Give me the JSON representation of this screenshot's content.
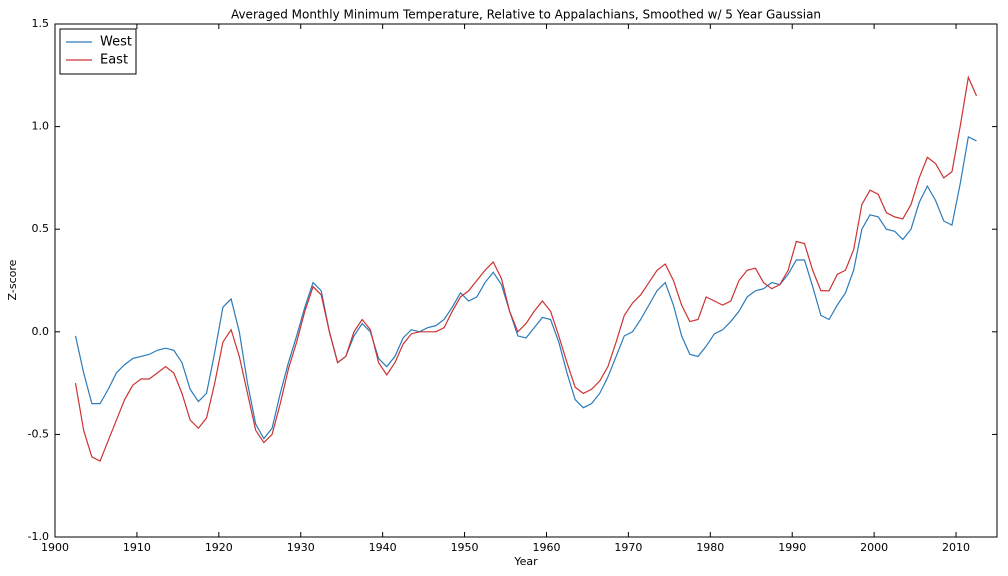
{
  "chart_data": {
    "type": "line",
    "title": "Averaged Monthly Minimum Temperature, Relative to Appalachians, Smoothed w/ 5 Year Gaussian",
    "xlabel": "Year",
    "ylabel": "Z-score",
    "x": [
      1902.5,
      1903.5,
      1904.5,
      1905.5,
      1906.5,
      1907.5,
      1908.5,
      1909.5,
      1910.5,
      1911.5,
      1912.5,
      1913.5,
      1914.5,
      1915.5,
      1916.5,
      1917.5,
      1918.5,
      1919.5,
      1920.5,
      1921.5,
      1922.5,
      1923.5,
      1924.5,
      1925.5,
      1926.5,
      1927.5,
      1928.5,
      1929.5,
      1930.5,
      1931.5,
      1932.5,
      1933.5,
      1934.5,
      1935.5,
      1936.5,
      1937.5,
      1938.5,
      1939.5,
      1940.5,
      1941.5,
      1942.5,
      1943.5,
      1944.5,
      1945.5,
      1946.5,
      1947.5,
      1948.5,
      1949.5,
      1950.5,
      1951.5,
      1952.5,
      1953.5,
      1954.5,
      1955.5,
      1956.5,
      1957.5,
      1958.5,
      1959.5,
      1960.5,
      1961.5,
      1962.5,
      1963.5,
      1964.5,
      1965.5,
      1966.5,
      1967.5,
      1968.5,
      1969.5,
      1970.5,
      1971.5,
      1972.5,
      1973.5,
      1974.5,
      1975.5,
      1976.5,
      1977.5,
      1978.5,
      1979.5,
      1980.5,
      1981.5,
      1982.5,
      1983.5,
      1984.5,
      1985.5,
      1986.5,
      1987.5,
      1988.5,
      1989.5,
      1990.5,
      1991.5,
      1992.5,
      1993.5,
      1994.5,
      1995.5,
      1996.5,
      1997.5,
      1998.5,
      1999.5,
      2000.5,
      2001.5,
      2002.5,
      2003.5,
      2004.5,
      2005.5,
      2006.5,
      2007.5,
      2008.5,
      2009.5,
      2010.5,
      2011.5,
      2012.5
    ],
    "series": [
      {
        "name": "West",
        "color": "#2b7bba",
        "values": [
          -0.02,
          -0.2,
          -0.35,
          -0.35,
          -0.28,
          -0.2,
          -0.16,
          -0.13,
          -0.12,
          -0.11,
          -0.09,
          -0.08,
          -0.09,
          -0.15,
          -0.28,
          -0.34,
          -0.3,
          -0.1,
          0.12,
          0.16,
          0.0,
          -0.25,
          -0.45,
          -0.52,
          -0.47,
          -0.3,
          -0.15,
          -0.02,
          0.12,
          0.24,
          0.2,
          0.0,
          -0.15,
          -0.12,
          -0.02,
          0.04,
          0.0,
          -0.13,
          -0.17,
          -0.12,
          -0.03,
          0.01,
          0.0,
          0.02,
          0.03,
          0.06,
          0.12,
          0.19,
          0.15,
          0.17,
          0.24,
          0.29,
          0.23,
          0.1,
          -0.02,
          -0.03,
          0.02,
          0.07,
          0.06,
          -0.05,
          -0.2,
          -0.33,
          -0.37,
          -0.35,
          -0.3,
          -0.22,
          -0.12,
          -0.02,
          0.0,
          0.06,
          0.13,
          0.2,
          0.24,
          0.13,
          -0.02,
          -0.11,
          -0.12,
          -0.07,
          -0.01,
          0.01,
          0.05,
          0.1,
          0.17,
          0.2,
          0.21,
          0.24,
          0.23,
          0.28,
          0.35,
          0.35,
          0.22,
          0.08,
          0.06,
          0.13,
          0.19,
          0.3,
          0.5,
          0.57,
          0.56,
          0.5,
          0.49,
          0.45,
          0.5,
          0.63,
          0.71,
          0.64,
          0.54,
          0.52,
          0.72,
          0.95,
          0.93
        ]
      },
      {
        "name": "East",
        "color": "#cc3333",
        "values": [
          -0.25,
          -0.48,
          -0.61,
          -0.63,
          -0.53,
          -0.43,
          -0.33,
          -0.26,
          -0.23,
          -0.23,
          -0.2,
          -0.17,
          -0.2,
          -0.3,
          -0.43,
          -0.47,
          -0.42,
          -0.25,
          -0.05,
          0.01,
          -0.12,
          -0.3,
          -0.48,
          -0.54,
          -0.5,
          -0.35,
          -0.18,
          -0.05,
          0.1,
          0.22,
          0.18,
          0.0,
          -0.15,
          -0.12,
          0.0,
          0.06,
          0.01,
          -0.15,
          -0.21,
          -0.15,
          -0.06,
          -0.01,
          0.0,
          0.0,
          0.0,
          0.02,
          0.1,
          0.17,
          0.2,
          0.25,
          0.3,
          0.34,
          0.26,
          0.1,
          0.0,
          0.04,
          0.1,
          0.15,
          0.1,
          -0.02,
          -0.15,
          -0.27,
          -0.3,
          -0.28,
          -0.24,
          -0.17,
          -0.05,
          0.08,
          0.14,
          0.18,
          0.24,
          0.3,
          0.33,
          0.25,
          0.13,
          0.05,
          0.06,
          0.17,
          0.15,
          0.13,
          0.15,
          0.25,
          0.3,
          0.31,
          0.24,
          0.21,
          0.23,
          0.3,
          0.44,
          0.43,
          0.3,
          0.2,
          0.2,
          0.28,
          0.3,
          0.4,
          0.62,
          0.69,
          0.67,
          0.58,
          0.56,
          0.55,
          0.62,
          0.75,
          0.85,
          0.82,
          0.75,
          0.78,
          1.0,
          1.24,
          1.15
        ]
      }
    ],
    "xlim": [
      1900,
      2015
    ],
    "xticks": [
      1900,
      1910,
      1920,
      1930,
      1940,
      1950,
      1960,
      1970,
      1980,
      1990,
      2000,
      2010
    ],
    "ylim": [
      -1.0,
      1.5
    ],
    "yticks": [
      {
        "value": -1.0,
        "label": "-1.0"
      },
      -0.5,
      {
        "value": 0.0,
        "label": "0.0"
      },
      0.5,
      {
        "value": 1.0,
        "label": "1.0"
      },
      {
        "value": 1.5,
        "label": "1.5"
      }
    ],
    "legend": "upper-left",
    "grid": false
  }
}
